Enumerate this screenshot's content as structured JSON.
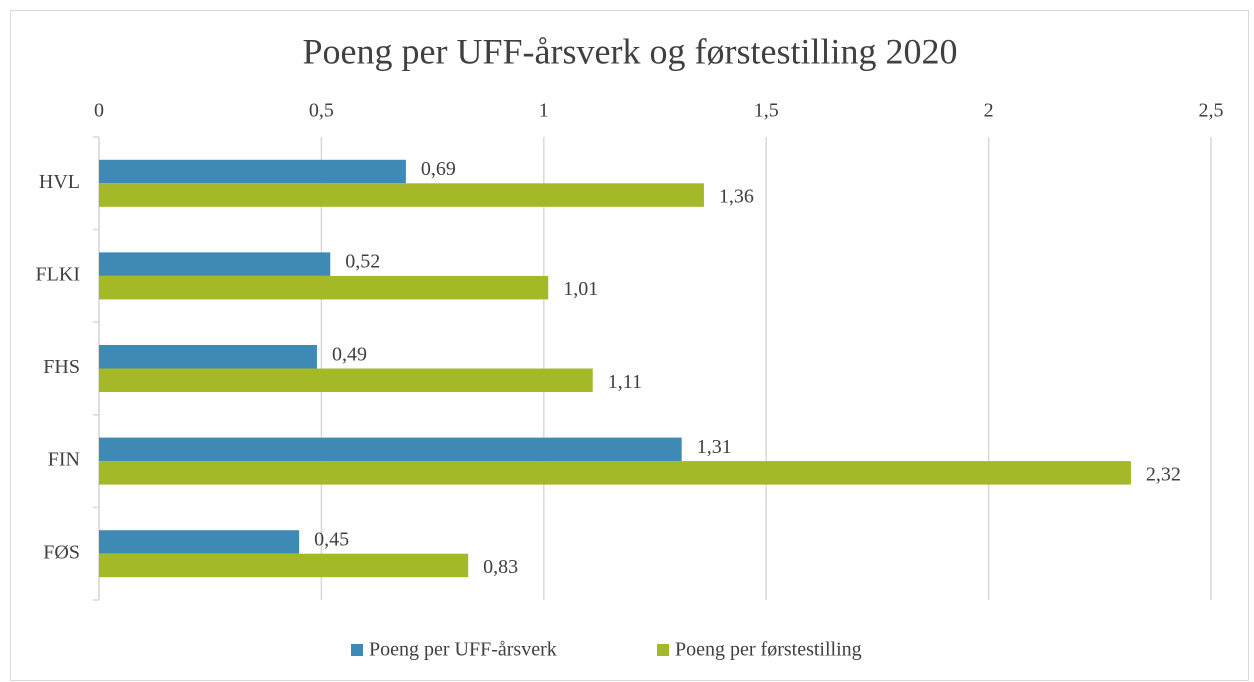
{
  "chart_data": {
    "type": "hbar",
    "title": "Poeng per UFF-årsverk og førstestilling 2020",
    "categories": [
      "HVL",
      "FLKI",
      "FHS",
      "FIN",
      "FØS"
    ],
    "series": [
      {
        "name": "Poeng per UFF-årsverk",
        "color": "#3f8ab4",
        "values": [
          0.69,
          0.52,
          0.49,
          1.31,
          0.45
        ],
        "value_labels": [
          "0,69",
          "0,52",
          "0,49",
          "1,31",
          "0,45"
        ]
      },
      {
        "name": "Poeng per førstestilling",
        "color": "#a5b828",
        "values": [
          1.36,
          1.01,
          1.11,
          2.32,
          0.83
        ],
        "value_labels": [
          "1,36",
          "1,01",
          "1,11",
          "2,32",
          "0,83"
        ]
      }
    ],
    "xlim": [
      0,
      2.5
    ],
    "xticks": [
      0,
      {
        "value": 0.5,
        "label": "0,5"
      },
      1,
      {
        "value": 1.5,
        "label": "1,5"
      },
      2,
      {
        "value": 2.5,
        "label": "2,5"
      }
    ],
    "grid": true,
    "legend": "bottom"
  }
}
